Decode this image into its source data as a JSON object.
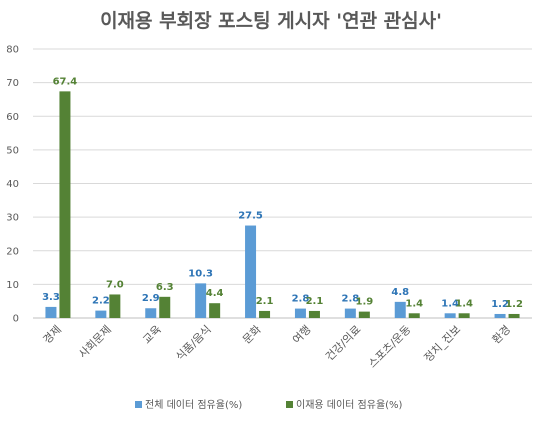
{
  "chart_data": {
    "type": "bar",
    "title": "이재용 부회장 포스팅 게시자 '연관 관심사'",
    "categories": [
      "경제",
      "사회문제",
      "교육",
      "식품/음식",
      "문화",
      "여행",
      "건강/의료",
      "스포츠/운동",
      "정치_진보",
      "환경"
    ],
    "series": [
      {
        "name": "전체 데이터 점유율(%)",
        "color": "#5b9bd5",
        "label_color": "#2e75b6",
        "values": [
          3.3,
          2.2,
          2.9,
          10.3,
          27.5,
          2.8,
          2.8,
          4.8,
          1.4,
          1.2
        ],
        "labels": [
          "3.3",
          "2.2",
          "2.9",
          "10.3",
          "27.5",
          "2.8",
          "2.8",
          "4.8",
          "1.4",
          "1.2"
        ]
      },
      {
        "name": "이재용 데이터 점유율(%)",
        "color": "#548235",
        "label_color": "#548235",
        "values": [
          67.4,
          7.0,
          6.3,
          4.4,
          2.1,
          2.1,
          1.9,
          1.4,
          1.4,
          1.2
        ],
        "labels": [
          "67.4",
          "7.0",
          "6.3",
          "4.4",
          "2.1",
          "2.1",
          "1.9",
          "1.4",
          "1.4",
          "1.2"
        ]
      }
    ],
    "ylim": [
      0,
      80
    ],
    "yticks": [
      0,
      10,
      20,
      30,
      40,
      50,
      60,
      70,
      80
    ],
    "grid": true,
    "legend_position": "bottom",
    "xlabel": "",
    "ylabel": ""
  }
}
